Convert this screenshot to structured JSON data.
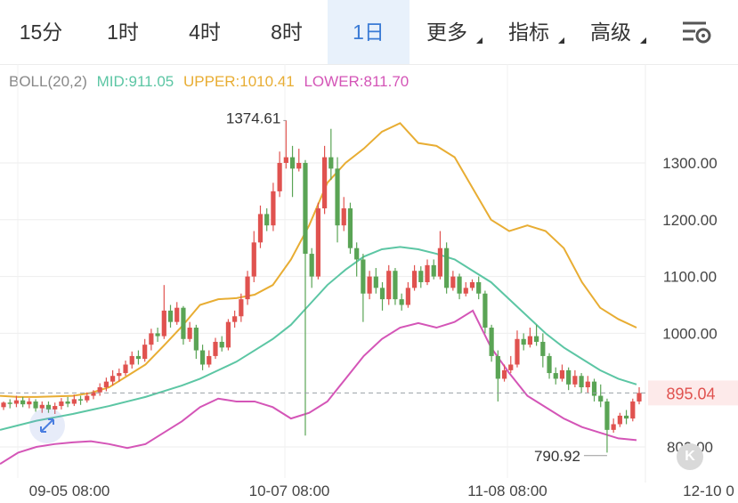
{
  "toolbar": {
    "tabs": [
      {
        "label": "15分"
      },
      {
        "label": "1时"
      },
      {
        "label": "4时"
      },
      {
        "label": "8时"
      },
      {
        "label": "1日",
        "active": true
      },
      {
        "label": "更多",
        "dropdown": true
      },
      {
        "label": "指标",
        "dropdown": true
      },
      {
        "label": "高级",
        "dropdown": true
      }
    ],
    "settings_icon": "chart-settings-icon"
  },
  "indicator": {
    "name": "BOLL(20,2)",
    "mid": "MID:911.05",
    "upper": "UPPER:1010.41",
    "lower": "LOWER:811.70"
  },
  "colors": {
    "up": "#e0524f",
    "down": "#5aa455",
    "mid": "#5cc6a4",
    "upper": "#e8ad33",
    "lower": "#d455b7",
    "accent": "#3a7bd5",
    "price_line": "#9aa0a6"
  },
  "chart_data": {
    "type": "candlestick",
    "x_ticks": [
      "09-05 08:00",
      "10-07 08:00",
      "11-08 08:00",
      "12-10 0"
    ],
    "y_ticks": [
      "1300.00",
      "1200.00",
      "1100.00",
      "1000.00",
      "800.00"
    ],
    "y_tick_values": [
      1300,
      1200,
      1100,
      1000,
      800
    ],
    "current_price": "895.04",
    "current_price_value": 895.04,
    "high_label": "1374.61",
    "high_value": 1374.61,
    "low_label": "790.92",
    "low_value": 790.92,
    "ylim": [
      760,
      1400
    ],
    "start_date": "09-01",
    "candles": [
      [
        870,
        878,
        865,
        880
      ],
      [
        878,
        876,
        868,
        884
      ],
      [
        876,
        882,
        870,
        890
      ],
      [
        882,
        875,
        870,
        888
      ],
      [
        875,
        880,
        868,
        886
      ],
      [
        880,
        868,
        862,
        884
      ],
      [
        868,
        874,
        860,
        880
      ],
      [
        874,
        866,
        860,
        880
      ],
      [
        866,
        872,
        858,
        878
      ],
      [
        872,
        880,
        866,
        886
      ],
      [
        880,
        876,
        870,
        888
      ],
      [
        876,
        884,
        872,
        892
      ],
      [
        884,
        882,
        874,
        890
      ],
      [
        882,
        890,
        878,
        896
      ],
      [
        890,
        896,
        884,
        900
      ],
      [
        896,
        905,
        890,
        912
      ],
      [
        905,
        915,
        898,
        922
      ],
      [
        915,
        925,
        908,
        935
      ],
      [
        925,
        930,
        915,
        938
      ],
      [
        930,
        945,
        925,
        952
      ],
      [
        945,
        960,
        938,
        968
      ],
      [
        960,
        955,
        945,
        970
      ],
      [
        955,
        980,
        950,
        990
      ],
      [
        980,
        1000,
        970,
        1008
      ],
      [
        1000,
        995,
        985,
        1010
      ],
      [
        995,
        1040,
        990,
        1085
      ],
      [
        1040,
        1020,
        1010,
        1050
      ],
      [
        1020,
        1045,
        1015,
        1055
      ],
      [
        1045,
        990,
        980,
        1048
      ],
      [
        990,
        1010,
        985,
        1020
      ],
      [
        1010,
        970,
        955,
        1015
      ],
      [
        970,
        945,
        935,
        980
      ],
      [
        945,
        960,
        940,
        970
      ],
      [
        960,
        985,
        955,
        992
      ],
      [
        985,
        975,
        968,
        995
      ],
      [
        975,
        1020,
        970,
        1025
      ],
      [
        1020,
        1030,
        1010,
        1040
      ],
      [
        1030,
        1060,
        1020,
        1070
      ],
      [
        1060,
        1100,
        1050,
        1110
      ],
      [
        1100,
        1160,
        1090,
        1180
      ],
      [
        1160,
        1210,
        1150,
        1225
      ],
      [
        1210,
        1190,
        1180,
        1220
      ],
      [
        1190,
        1250,
        1180,
        1265
      ],
      [
        1250,
        1300,
        1240,
        1320
      ],
      [
        1300,
        1310,
        1290,
        1375
      ],
      [
        1310,
        1290,
        1240,
        1330
      ],
      [
        1290,
        1300,
        1285,
        1325
      ],
      [
        1300,
        1140,
        820,
        1305
      ],
      [
        1140,
        1100,
        1080,
        1150
      ],
      [
        1100,
        1220,
        1095,
        1230
      ],
      [
        1220,
        1310,
        1210,
        1330
      ],
      [
        1310,
        1290,
        1270,
        1360
      ],
      [
        1290,
        1190,
        1160,
        1310
      ],
      [
        1190,
        1220,
        1180,
        1240
      ],
      [
        1220,
        1150,
        1140,
        1230
      ],
      [
        1150,
        1130,
        1100,
        1160
      ],
      [
        1130,
        1070,
        1020,
        1140
      ],
      [
        1070,
        1100,
        1060,
        1110
      ],
      [
        1100,
        1080,
        1070,
        1115
      ],
      [
        1080,
        1060,
        1040,
        1090
      ],
      [
        1060,
        1110,
        1050,
        1120
      ],
      [
        1110,
        1060,
        1050,
        1115
      ],
      [
        1060,
        1050,
        1040,
        1070
      ],
      [
        1050,
        1080,
        1045,
        1090
      ],
      [
        1080,
        1110,
        1075,
        1120
      ],
      [
        1110,
        1090,
        1080,
        1118
      ],
      [
        1090,
        1120,
        1085,
        1130
      ],
      [
        1120,
        1100,
        1095,
        1130
      ],
      [
        1100,
        1150,
        1095,
        1180
      ],
      [
        1150,
        1080,
        1070,
        1160
      ],
      [
        1080,
        1100,
        1075,
        1110
      ],
      [
        1100,
        1070,
        1060,
        1105
      ],
      [
        1070,
        1080,
        1065,
        1090
      ],
      [
        1080,
        1090,
        1075,
        1095
      ],
      [
        1090,
        1070,
        1060,
        1100
      ],
      [
        1070,
        1010,
        1000,
        1075
      ],
      [
        1010,
        960,
        950,
        1015
      ],
      [
        960,
        920,
        880,
        970
      ],
      [
        920,
        935,
        915,
        945
      ],
      [
        935,
        945,
        930,
        960
      ],
      [
        945,
        990,
        940,
        1005
      ],
      [
        990,
        980,
        970,
        1000
      ],
      [
        980,
        995,
        975,
        1010
      ],
      [
        995,
        985,
        978,
        1015
      ],
      [
        985,
        960,
        940,
        1000
      ],
      [
        960,
        930,
        920,
        965
      ],
      [
        930,
        920,
        910,
        940
      ],
      [
        920,
        935,
        915,
        945
      ],
      [
        935,
        910,
        900,
        940
      ],
      [
        910,
        925,
        905,
        935
      ],
      [
        925,
        905,
        895,
        930
      ],
      [
        905,
        915,
        895,
        925
      ],
      [
        915,
        890,
        880,
        920
      ],
      [
        890,
        880,
        870,
        910
      ],
      [
        880,
        830,
        790,
        885
      ],
      [
        830,
        840,
        825,
        850
      ],
      [
        840,
        855,
        835,
        860
      ],
      [
        855,
        850,
        840,
        865
      ],
      [
        850,
        880,
        845,
        885
      ],
      [
        880,
        895,
        875,
        905
      ]
    ],
    "boll_mid": [
      830,
      838,
      846,
      852,
      858,
      865,
      872,
      880,
      888,
      898,
      908,
      920,
      935,
      950,
      970,
      990,
      1015,
      1050,
      1085,
      1112,
      1135,
      1148,
      1152,
      1148,
      1140,
      1130,
      1110,
      1090,
      1060,
      1030,
      1000,
      975,
      955,
      935,
      920,
      910
    ],
    "boll_upper": [
      890,
      888,
      888,
      889,
      890,
      895,
      905,
      925,
      945,
      978,
      1012,
      1050,
      1060,
      1062,
      1068,
      1085,
      1130,
      1190,
      1265,
      1300,
      1325,
      1355,
      1370,
      1335,
      1330,
      1310,
      1255,
      1200,
      1180,
      1190,
      1180,
      1150,
      1090,
      1045,
      1025,
      1010
    ],
    "boll_lower": [
      770,
      790,
      800,
      805,
      808,
      810,
      805,
      798,
      805,
      825,
      845,
      870,
      885,
      880,
      880,
      870,
      850,
      860,
      880,
      920,
      960,
      990,
      1010,
      1018,
      1010,
      1020,
      1040,
      975,
      930,
      890,
      870,
      850,
      835,
      825,
      815,
      812
    ]
  }
}
